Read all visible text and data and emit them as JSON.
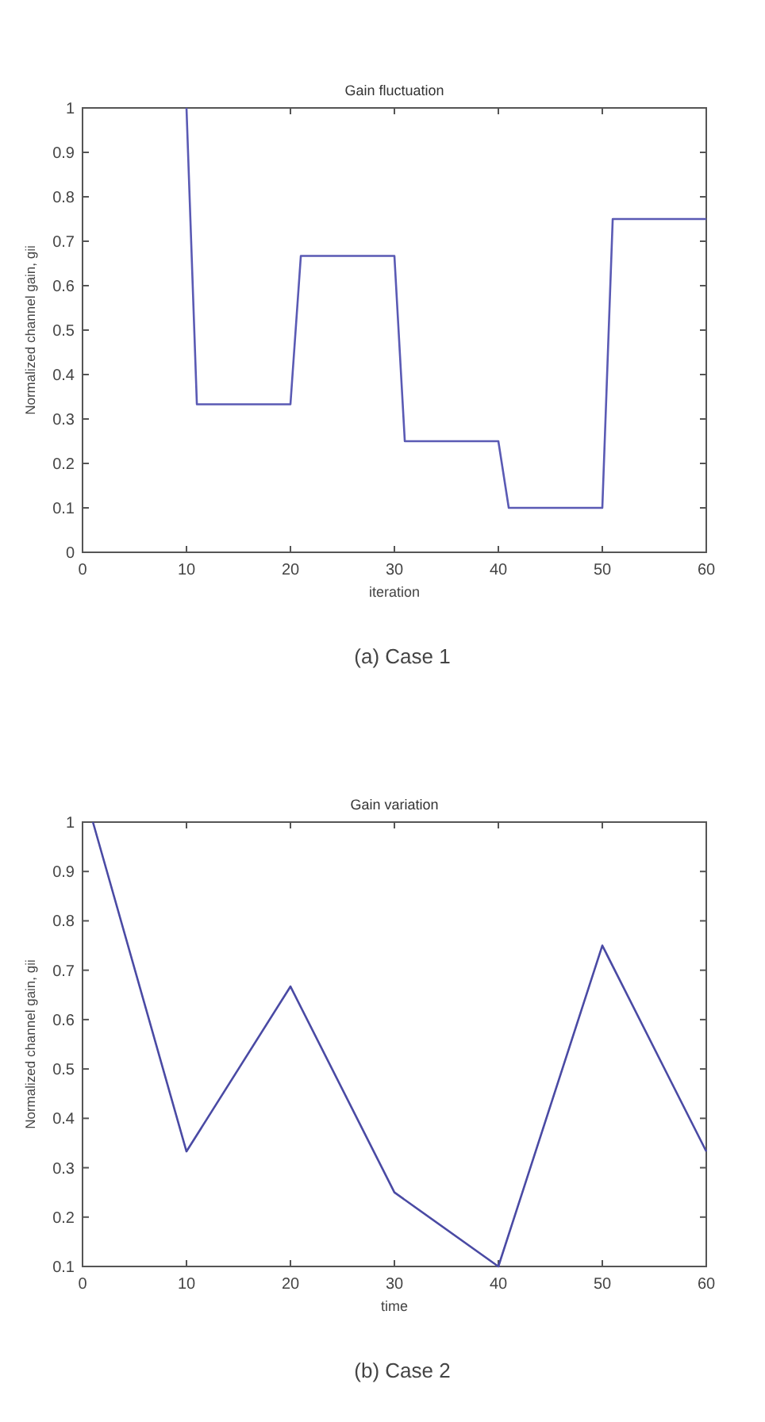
{
  "chart_data": [
    {
      "type": "line",
      "title": "Gain fluctuation",
      "xlabel": "iteration",
      "ylabel": "Normalized channel gain, gii",
      "annotations": [
        "(a) Case 1"
      ],
      "x": [
        10,
        11,
        20,
        21,
        30,
        31,
        40,
        41,
        50,
        51,
        60
      ],
      "series": [
        {
          "color": "#5a5ab4",
          "values": [
            1,
            0.333,
            0.333,
            0.667,
            0.667,
            0.25,
            0.25,
            0.1,
            0.1,
            0.75,
            0.75
          ]
        }
      ],
      "xlim": [
        0,
        60
      ],
      "xticks": [
        0,
        10,
        20,
        30,
        40,
        50,
        60
      ],
      "ylim": [
        0,
        1
      ],
      "yticks": [
        0,
        0.1,
        0.2,
        0.3,
        0.4,
        0.5,
        0.6,
        0.7,
        0.8,
        0.9,
        1
      ],
      "grid": false,
      "marker": "none",
      "line_style": "solid"
    },
    {
      "type": "line",
      "title": "Gain variation",
      "xlabel": "time",
      "ylabel": "Normalized channel gain, gii",
      "annotations": [
        "(b) Case 2"
      ],
      "x": [
        1,
        10,
        20,
        30,
        40,
        50,
        60
      ],
      "series": [
        {
          "color": "#4a4aa4",
          "values": [
            1,
            0.333,
            0.667,
            0.25,
            0.1,
            0.75,
            0.333
          ]
        }
      ],
      "xlim": [
        0,
        60
      ],
      "xticks": [
        0,
        10,
        20,
        30,
        40,
        50,
        60
      ],
      "ylim": [
        0.1,
        1
      ],
      "yticks": [
        0.1,
        0.2,
        0.3,
        0.4,
        0.5,
        0.6,
        0.7,
        0.8,
        0.9,
        1
      ],
      "grid": false,
      "marker": "none",
      "line_style": "solid"
    }
  ]
}
